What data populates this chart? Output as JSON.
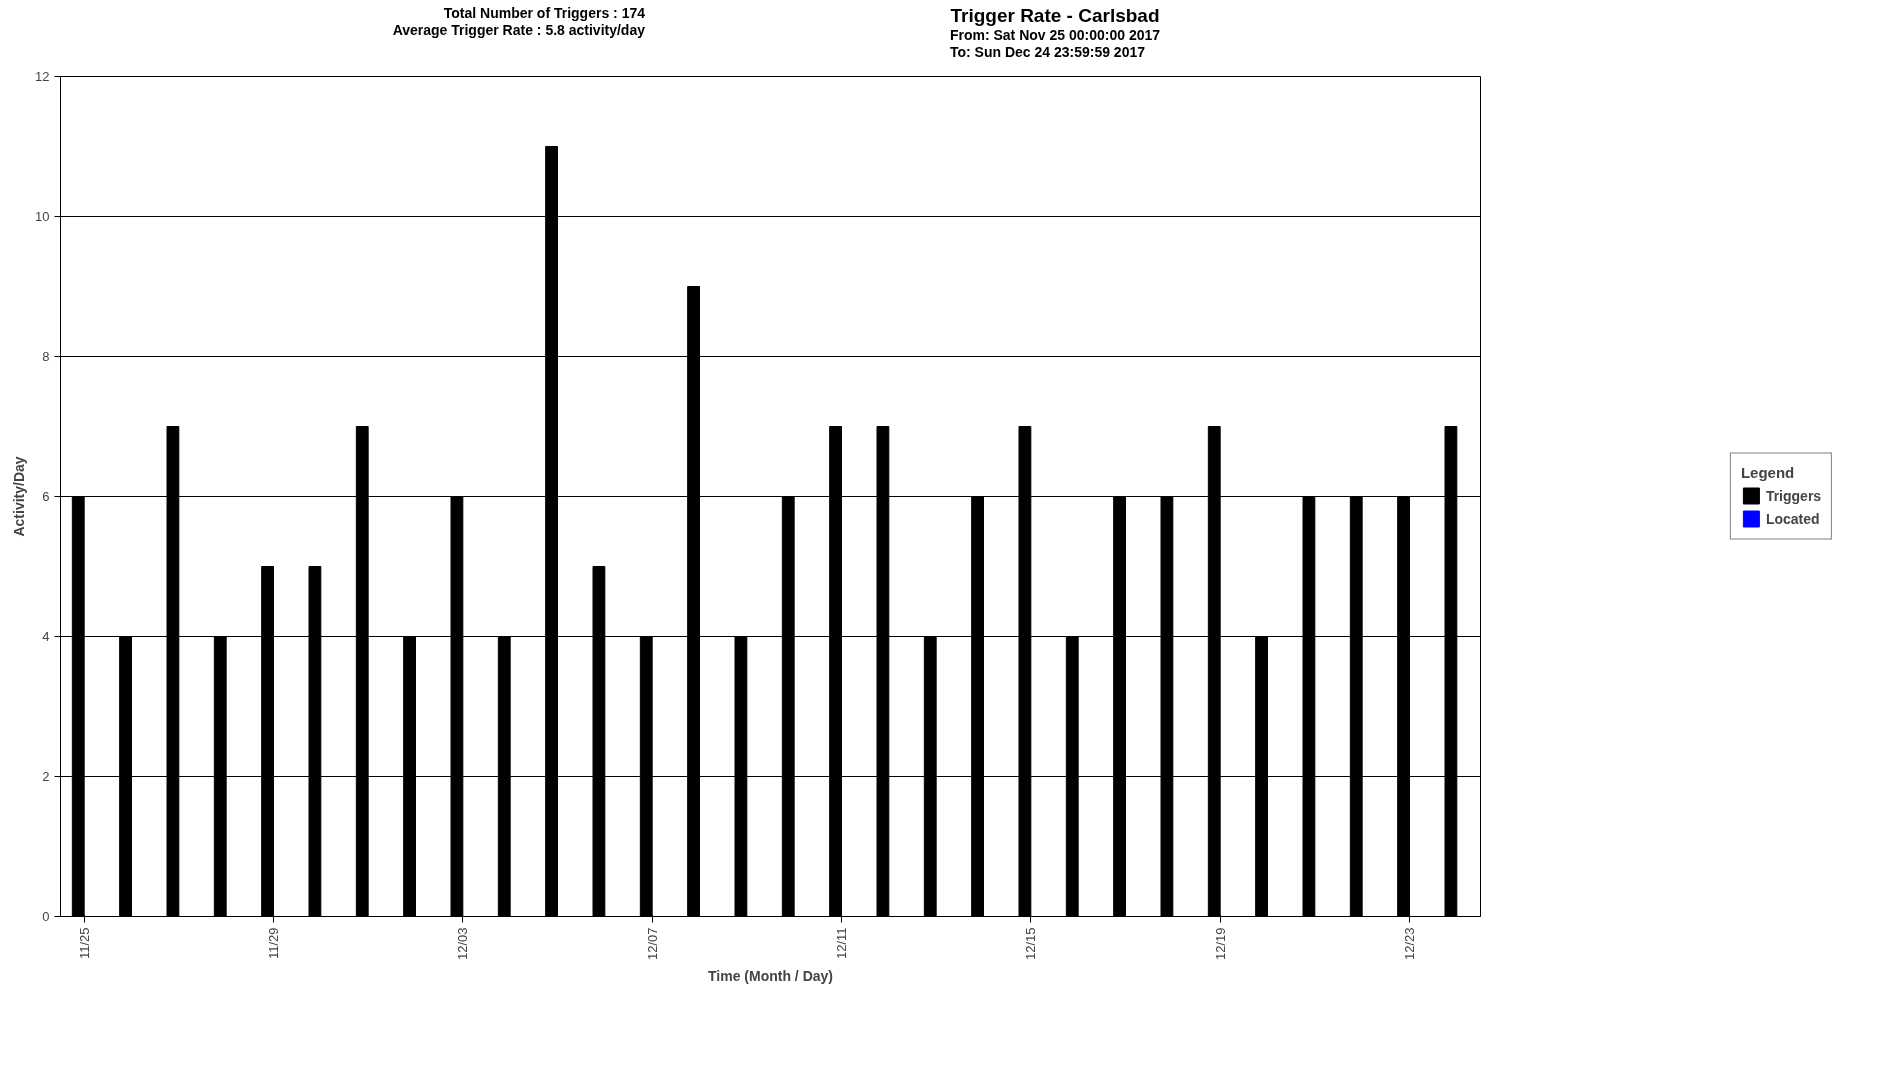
{
  "chart_data": {
    "type": "bar",
    "title": "Trigger Rate - Carlsbad",
    "xlabel": "Time (Month / Day)",
    "ylabel": "Activity/Day",
    "legend_title": "Legend",
    "annotations": [
      "Total Number of Triggers : 174",
      "Average Trigger Rate : 5.8 activity/day",
      "From: Sat Nov 25 00:00:00 2017",
      "To: Sun Dec 24 23:59:59 2017"
    ],
    "categories": [
      "11/25",
      null,
      null,
      null,
      "11/29",
      null,
      null,
      null,
      "12/03",
      null,
      null,
      null,
      "12/07",
      null,
      null,
      null,
      "12/11",
      null,
      null,
      null,
      "12/15",
      null,
      null,
      null,
      "12/19",
      null,
      null,
      null,
      "12/23",
      null
    ],
    "series": [
      {
        "name": "Triggers",
        "color": "#000000",
        "values": [
          6,
          4,
          7,
          4,
          5,
          5,
          7,
          4,
          6,
          4,
          11,
          5,
          4,
          9,
          4,
          6,
          7,
          7,
          4,
          6,
          7,
          4,
          6,
          6,
          7,
          4,
          6,
          6,
          6,
          7
        ]
      },
      {
        "name": "Located",
        "color": "#0000ff",
        "values": [
          0,
          0,
          0,
          0,
          0,
          0,
          0,
          0,
          0,
          0,
          0,
          0,
          0,
          0,
          0,
          0,
          0,
          0,
          0,
          0,
          0,
          0,
          0,
          0,
          0,
          0,
          0,
          0,
          0,
          0
        ]
      }
    ],
    "ylim": [
      0,
      12
    ],
    "yticks": [
      0,
      2,
      4,
      6,
      8,
      10,
      12
    ],
    "grid": "y",
    "legend": "right"
  }
}
